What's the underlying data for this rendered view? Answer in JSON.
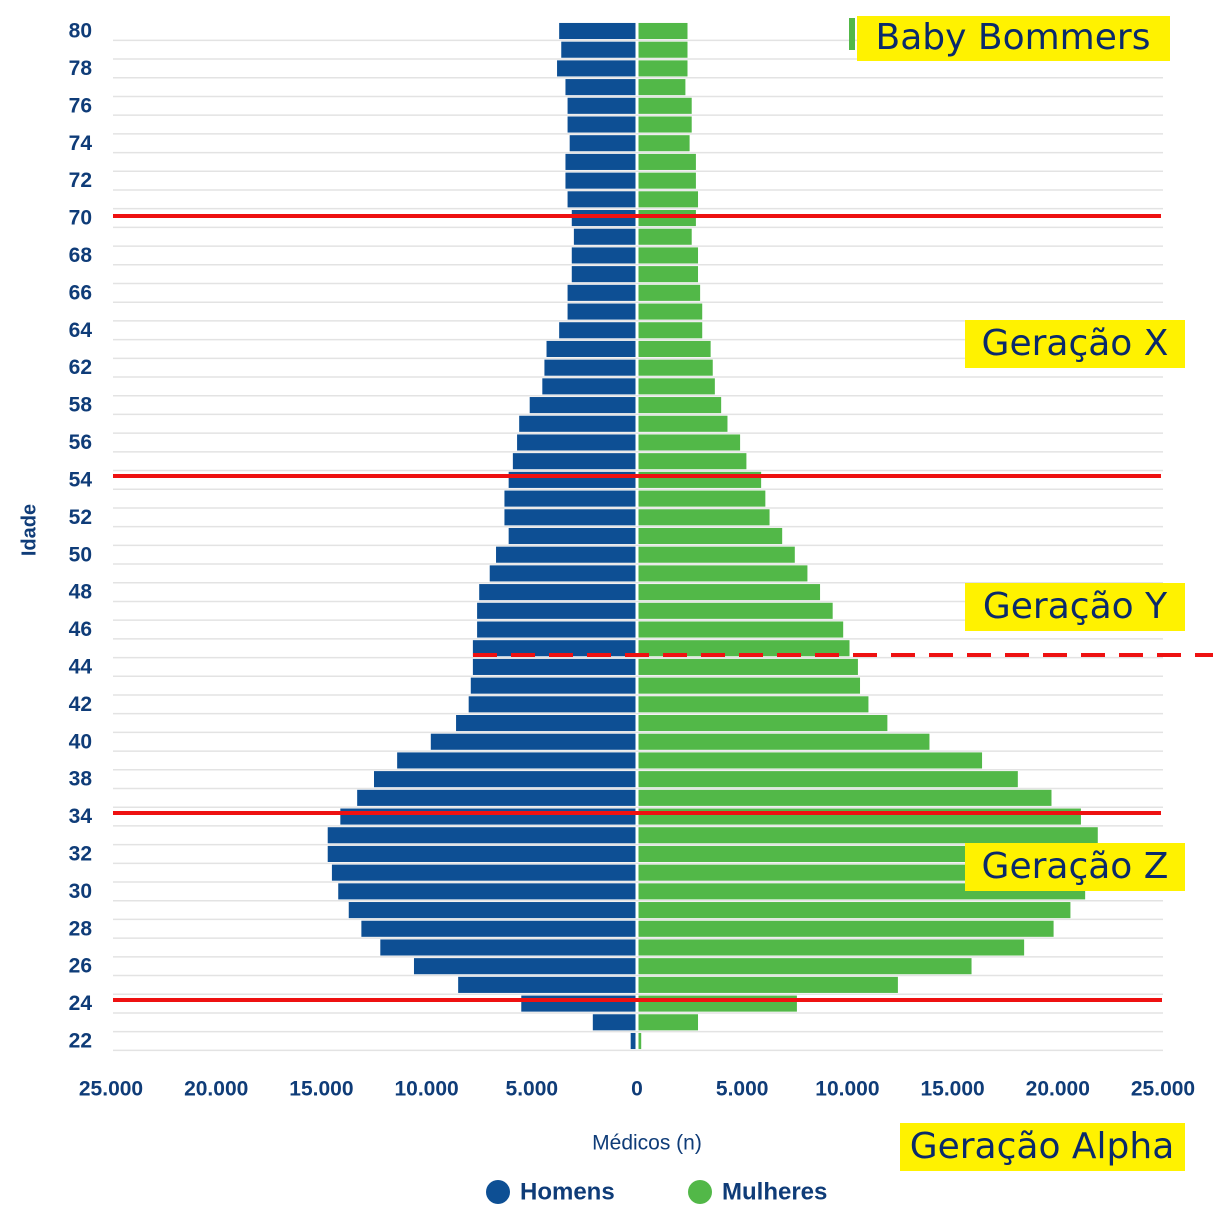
{
  "chart_data": {
    "type": "pyramid",
    "xlabel": "Médicos (n)",
    "ylabel": "Idade",
    "categories": [
      "22",
      null,
      "24",
      null,
      "26",
      null,
      "28",
      null,
      "30",
      null,
      "32",
      null,
      "34",
      null,
      "38",
      null,
      "40",
      null,
      "42",
      null,
      "44",
      null,
      "46",
      null,
      "48",
      null,
      "50",
      null,
      "52",
      null,
      "54",
      null,
      "56",
      null,
      "58",
      null,
      "62",
      null,
      "64",
      null,
      "66",
      null,
      "68",
      null,
      "70",
      null,
      "72",
      null,
      "74",
      null,
      "76",
      null,
      "78",
      null,
      "80"
    ],
    "series": [
      {
        "name": "Homens",
        "color": "#0d4f94",
        "values": [
          -300,
          -2100,
          -5500,
          -8500,
          -10600,
          -12200,
          -13100,
          -13700,
          -14200,
          -14500,
          -14700,
          -14700,
          -14100,
          -13300,
          -12500,
          -11400,
          -9800,
          -8600,
          -8000,
          -7900,
          -7800,
          -7800,
          -7600,
          -7600,
          -7500,
          -7000,
          -6700,
          -6100,
          -6300,
          -6300,
          -6100,
          -5900,
          -5700,
          -5600,
          -5100,
          -4500,
          -4400,
          -4300,
          -3700,
          -3300,
          -3300,
          -3100,
          -3100,
          -3000,
          -3100,
          -3300,
          -3400,
          -3400,
          -3200,
          -3300,
          -3300,
          -3400,
          -3800,
          -3600,
          -3700
        ]
      },
      {
        "name": "Mulheres",
        "color": "#52b848",
        "values": [
          200,
          2900,
          7600,
          12400,
          15900,
          18400,
          19800,
          20600,
          21300,
          21700,
          21700,
          21900,
          21100,
          19700,
          18100,
          16400,
          13900,
          11900,
          11000,
          10600,
          10500,
          10100,
          9800,
          9300,
          8700,
          8100,
          7500,
          6900,
          6300,
          6100,
          5900,
          5200,
          4900,
          4300,
          4000,
          3700,
          3600,
          3500,
          3100,
          3100,
          3000,
          2900,
          2900,
          2600,
          2800,
          2900,
          2800,
          2800,
          2500,
          2600,
          2600,
          2300,
          2400,
          2400,
          2400
        ]
      }
    ],
    "xlim": [
      -25000,
      25000
    ],
    "xticks": [
      {
        "value": -25000,
        "label": "25.000"
      },
      {
        "value": -20000,
        "label": "20.000"
      },
      {
        "value": -15000,
        "label": "15.000"
      },
      {
        "value": -10000,
        "label": "10.000"
      },
      {
        "value": -5000,
        "label": "5.000"
      },
      0,
      {
        "value": 5000,
        "label": "5.000"
      },
      {
        "value": 10000,
        "label": "10.000"
      },
      {
        "value": 15000,
        "label": "15.000"
      },
      {
        "value": 20000,
        "label": "20.000"
      },
      {
        "value": 25000,
        "label": "25.000"
      }
    ],
    "annotations": [
      "Baby Bommers",
      "Geração X",
      "Geração Y",
      "Geração Z",
      "Geração Alpha"
    ]
  }
}
